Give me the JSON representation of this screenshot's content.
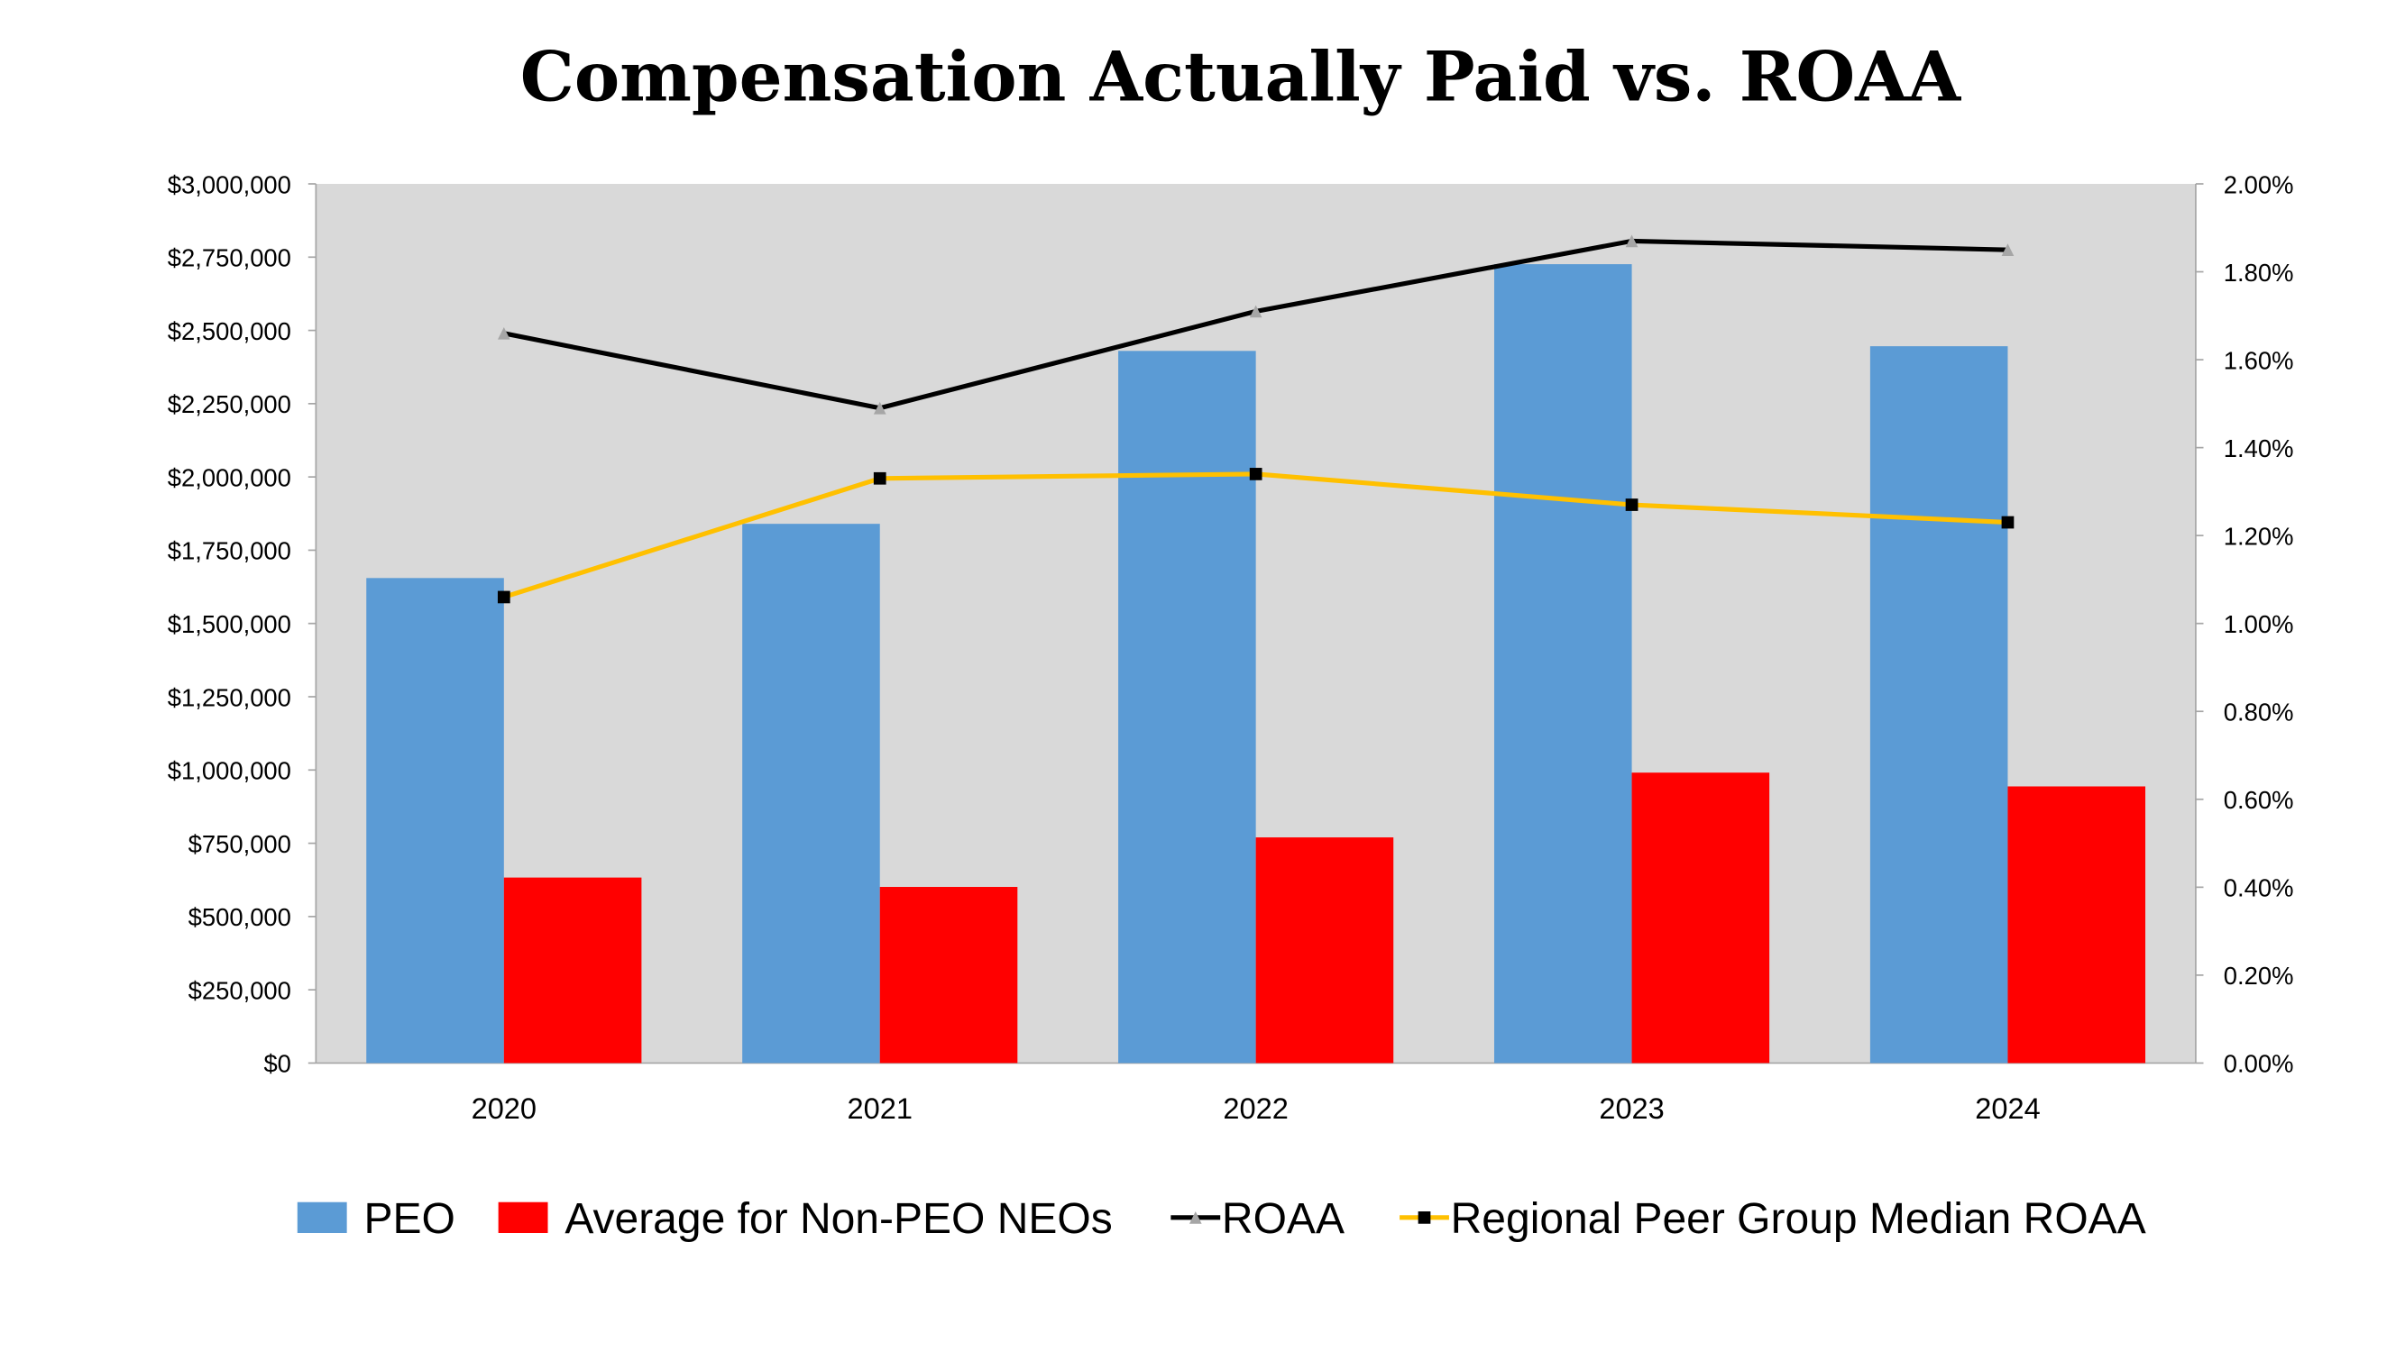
{
  "chart_data": {
    "type": "bar",
    "title": "Compensation Actually Paid vs. ROAA",
    "categories": [
      "2020",
      "2021",
      "2022",
      "2023",
      "2024"
    ],
    "y_left": {
      "ylim": [
        0,
        3000000
      ],
      "ticks": [
        "$0",
        "$250,000",
        "$500,000",
        "$750,000",
        "$1,000,000",
        "$1,250,000",
        "$1,500,000",
        "$1,750,000",
        "$2,000,000",
        "$2,250,000",
        "$2,500,000",
        "$2,750,000",
        "$3,000,000"
      ]
    },
    "y_right": {
      "ylim": [
        0,
        2.0
      ],
      "ticks": [
        "0.00%",
        "0.20%",
        "0.40%",
        "0.60%",
        "0.80%",
        "1.00%",
        "1.20%",
        "1.40%",
        "1.60%",
        "1.80%",
        "2.00%"
      ]
    },
    "series": [
      {
        "name": "PEO",
        "type": "bar",
        "axis": "left",
        "color": "#5b9bd5",
        "values": [
          1655000,
          1840000,
          2430000,
          2726000,
          2446000
        ]
      },
      {
        "name": "Average for Non-PEO NEOs",
        "type": "bar",
        "axis": "left",
        "color": "#ff0000",
        "values": [
          633000,
          601000,
          770000,
          991000,
          944000
        ]
      },
      {
        "name": "ROAA",
        "type": "line",
        "axis": "right",
        "color": "#000000",
        "marker": "triangle",
        "marker_color": "#a6a6a6",
        "values": [
          1.66,
          1.49,
          1.71,
          1.87,
          1.85
        ]
      },
      {
        "name": "Regional Peer Group Median ROAA",
        "type": "line",
        "axis": "right",
        "color": "#ffc000",
        "marker": "square",
        "marker_color": "#000000",
        "values": [
          1.06,
          1.33,
          1.34,
          1.27,
          1.23
        ]
      }
    ],
    "plot_background": "#d9d9d9",
    "grid": false,
    "legend_position": "bottom"
  }
}
